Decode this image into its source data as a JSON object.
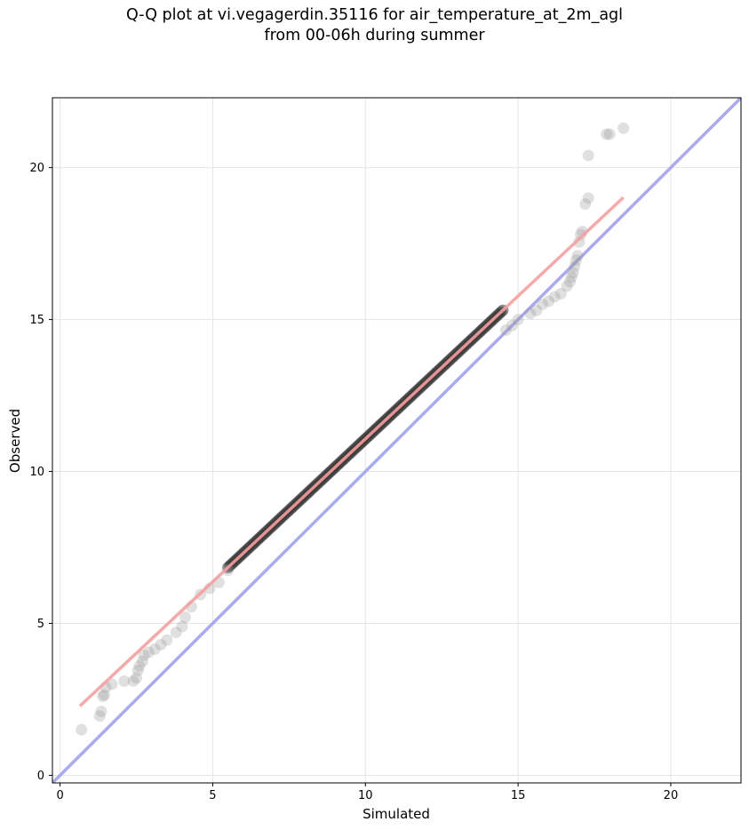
{
  "chart_data": {
    "type": "scatter",
    "title_lines": [
      "Q-Q plot at vi.vegagerdin.35116 for air_temperature_at_2m_agl",
      "from 00-06h during summer"
    ],
    "xlabel": "Simulated",
    "ylabel": "Observed",
    "xlim": [
      -0.25,
      22.3
    ],
    "ylim": [
      -0.25,
      22.3
    ],
    "x_ticks": [
      0,
      5,
      10,
      15,
      20
    ],
    "y_ticks": [
      0,
      5,
      10,
      15,
      20
    ],
    "grid": true,
    "colors": {
      "points": "#333333",
      "identity_line": "#aaaaee",
      "fit_line": "#f5a0a0",
      "dense_core": "#8a0000"
    },
    "identity_line": {
      "x": [
        -0.25,
        22.3
      ],
      "y": [
        -0.25,
        22.3
      ]
    },
    "fit_line": {
      "x": [
        0.65,
        18.45
      ],
      "y": [
        2.28,
        19.02
      ]
    },
    "points": [
      {
        "x": 0.7,
        "y": 1.5
      },
      {
        "x": 1.3,
        "y": 1.95
      },
      {
        "x": 1.35,
        "y": 2.1
      },
      {
        "x": 1.4,
        "y": 2.6
      },
      {
        "x": 1.45,
        "y": 2.65
      },
      {
        "x": 1.5,
        "y": 2.9
      },
      {
        "x": 1.7,
        "y": 3.0
      },
      {
        "x": 2.1,
        "y": 3.1
      },
      {
        "x": 2.4,
        "y": 3.1
      },
      {
        "x": 2.5,
        "y": 3.2
      },
      {
        "x": 2.55,
        "y": 3.45
      },
      {
        "x": 2.6,
        "y": 3.6
      },
      {
        "x": 2.7,
        "y": 3.75
      },
      {
        "x": 2.75,
        "y": 3.95
      },
      {
        "x": 2.9,
        "y": 4.05
      },
      {
        "x": 3.1,
        "y": 4.15
      },
      {
        "x": 3.3,
        "y": 4.3
      },
      {
        "x": 3.5,
        "y": 4.45
      },
      {
        "x": 3.8,
        "y": 4.7
      },
      {
        "x": 4.0,
        "y": 4.9
      },
      {
        "x": 4.1,
        "y": 5.2
      },
      {
        "x": 4.3,
        "y": 5.55
      },
      {
        "x": 4.6,
        "y": 5.95
      },
      {
        "x": 4.9,
        "y": 6.15
      },
      {
        "x": 5.2,
        "y": 6.35
      },
      {
        "x": 5.5,
        "y": 6.75
      },
      {
        "x": 14.6,
        "y": 14.65
      },
      {
        "x": 14.8,
        "y": 14.8
      },
      {
        "x": 15.0,
        "y": 15.0
      },
      {
        "x": 15.4,
        "y": 15.2
      },
      {
        "x": 15.6,
        "y": 15.3
      },
      {
        "x": 15.8,
        "y": 15.5
      },
      {
        "x": 16.0,
        "y": 15.6
      },
      {
        "x": 16.2,
        "y": 15.75
      },
      {
        "x": 16.4,
        "y": 15.85
      },
      {
        "x": 16.6,
        "y": 16.1
      },
      {
        "x": 16.7,
        "y": 16.25
      },
      {
        "x": 16.75,
        "y": 16.4
      },
      {
        "x": 16.8,
        "y": 16.55
      },
      {
        "x": 16.85,
        "y": 16.75
      },
      {
        "x": 16.9,
        "y": 16.95
      },
      {
        "x": 16.95,
        "y": 17.1
      },
      {
        "x": 17.0,
        "y": 17.55
      },
      {
        "x": 17.05,
        "y": 17.8
      },
      {
        "x": 17.1,
        "y": 17.9
      },
      {
        "x": 17.2,
        "y": 18.8
      },
      {
        "x": 17.3,
        "y": 19.0
      },
      {
        "x": 17.3,
        "y": 20.4
      },
      {
        "x": 17.9,
        "y": 21.1
      },
      {
        "x": 18.0,
        "y": 21.1
      },
      {
        "x": 18.45,
        "y": 21.3
      }
    ],
    "dense_band": {
      "x_range": [
        5.5,
        14.5
      ],
      "slope": 0.9405,
      "intercept": 1.667
    }
  }
}
